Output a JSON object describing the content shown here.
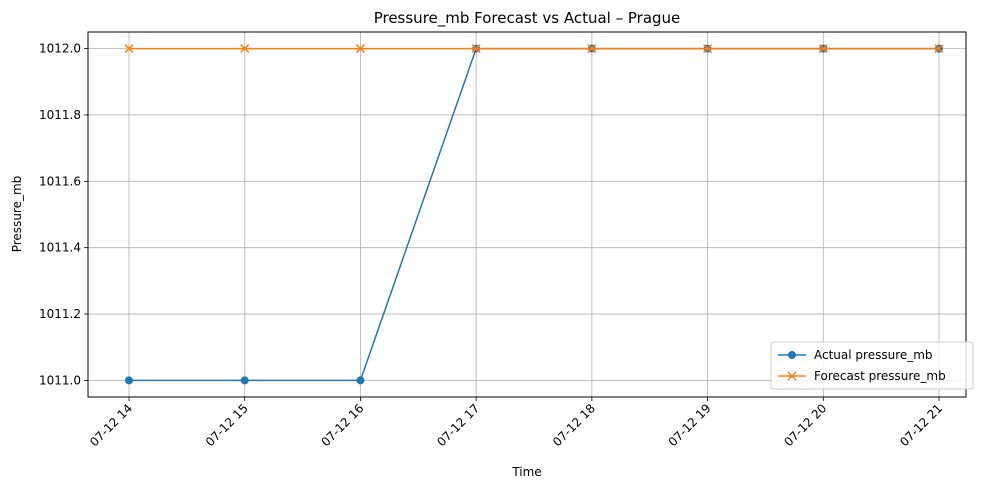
{
  "chart_data": {
    "type": "line",
    "title": "Pressure_mb Forecast vs Actual – Prague",
    "xlabel": "Time",
    "ylabel": "Pressure_mb",
    "categories": [
      "07-12 14",
      "07-12 15",
      "07-12 16",
      "07-12 17",
      "07-12 18",
      "07-12 19",
      "07-12 20",
      "07-12 21"
    ],
    "yticks": [
      "1011.0",
      "1011.2",
      "1011.4",
      "1011.6",
      "1011.8",
      "1012.0"
    ],
    "ylim": [
      1010.95,
      1012.05
    ],
    "grid": true,
    "legend_position": "lower-right",
    "series": [
      {
        "name": "Actual pressure_mb",
        "values": [
          1011.0,
          1011.0,
          1011.0,
          1012.0,
          1012.0,
          1012.0,
          1012.0,
          1012.0
        ],
        "color": "#1f77b4",
        "marker": "circle"
      },
      {
        "name": "Forecast pressure_mb",
        "values": [
          1012.0,
          1012.0,
          1012.0,
          1012.0,
          1012.0,
          1012.0,
          1012.0,
          1012.0
        ],
        "color": "#ff7f0e",
        "marker": "x"
      }
    ]
  }
}
